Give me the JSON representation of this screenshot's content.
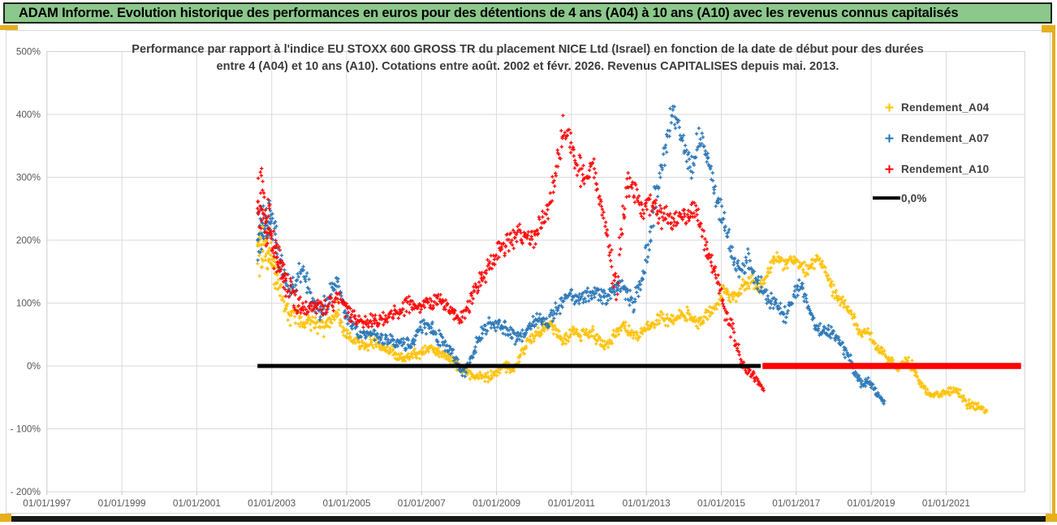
{
  "banner": {
    "title": "ADAM Informe. Evolution historique des performances en euros pour des détentions de 4 ans (A04) à 10 ans (A10) avec les revenus connus capitalisés"
  },
  "chart": {
    "title_line1": "Performance par rapport à l'indice EU STOXX 600 GROSS TR  du placement NICE Ltd (Israel) en fonction de la date de début pour des durées",
    "title_line2": "entre 4 (A04) et 10 ans (A10). Cotations entre août. 2002 et févr. 2026. Revenus CAPITALISES depuis mai. 2013."
  },
  "legend": {
    "items": [
      {
        "label": "Rendement_A04",
        "color": "#FFC000",
        "marker": "plus"
      },
      {
        "label": "Rendement_A07",
        "color": "#2473B5",
        "marker": "plus"
      },
      {
        "label": "Rendement_A10",
        "color": "#FF0000",
        "marker": "plus"
      },
      {
        "label": "0,0%",
        "color": "#000000",
        "marker": "line"
      }
    ]
  },
  "chart_data": {
    "type": "scatter",
    "title": "Performance par rapport à l'indice EU STOXX 600 GROSS TR du placement NICE Ltd (Israel) en fonction de la date de début pour des durées entre 4 (A04) et 10 ans (A10). Cotations entre août. 2002 et févr. 2026. Revenus CAPITALISES depuis mai. 2013.",
    "x_axis": {
      "ticks": [
        "01/01/1997",
        "01/01/1999",
        "01/01/2001",
        "01/01/2003",
        "01/01/2005",
        "01/01/2007",
        "01/01/2009",
        "01/01/2011",
        "01/01/2013",
        "01/01/2015",
        "01/01/2017",
        "01/01/2019",
        "01/01/2021"
      ],
      "range_years": [
        1997.0,
        2023.1
      ],
      "gridlines": true
    },
    "y_axis": {
      "ticks": [
        "500%",
        "400%",
        "300%",
        "200%",
        "100%",
        "0%",
        "- 100%",
        "- 200%"
      ],
      "range_pct": [
        -200,
        500
      ],
      "gridlines": true
    },
    "zero_line": {
      "label": "0,0%",
      "black_segment_years": [
        2002.62,
        2016.05
      ],
      "red_segment_years": [
        2016.1,
        2023.0
      ],
      "black_color": "#000000",
      "red_color": "#FF0000"
    },
    "legend_position": "right",
    "series": [
      {
        "name": "Rendement_A04",
        "color": "#FFC000",
        "marker": "plus",
        "seed": 7,
        "anchors": [
          [
            2002.62,
            185,
            60
          ],
          [
            2002.8,
            195,
            55
          ],
          [
            2002.95,
            175,
            45
          ],
          [
            2003.1,
            150,
            40
          ],
          [
            2003.35,
            100,
            30
          ],
          [
            2003.6,
            78,
            22
          ],
          [
            2003.85,
            72,
            20
          ],
          [
            2004.1,
            70,
            20
          ],
          [
            2004.35,
            58,
            16
          ],
          [
            2004.6,
            75,
            18
          ],
          [
            2004.75,
            88,
            16
          ],
          [
            2004.95,
            55,
            15
          ],
          [
            2005.2,
            38,
            13
          ],
          [
            2005.45,
            32,
            12
          ],
          [
            2005.7,
            38,
            12
          ],
          [
            2005.95,
            28,
            11
          ],
          [
            2006.2,
            22,
            11
          ],
          [
            2006.5,
            12,
            10
          ],
          [
            2006.75,
            18,
            10
          ],
          [
            2007.0,
            22,
            11
          ],
          [
            2007.25,
            30,
            12
          ],
          [
            2007.5,
            18,
            11
          ],
          [
            2007.8,
            8,
            10
          ],
          [
            2008.1,
            -8,
            10
          ],
          [
            2008.4,
            -14,
            10
          ],
          [
            2008.7,
            -20,
            9
          ],
          [
            2008.95,
            -12,
            9
          ],
          [
            2009.2,
            2,
            10
          ],
          [
            2009.45,
            -8,
            10
          ],
          [
            2009.7,
            25,
            12
          ],
          [
            2010.0,
            48,
            13
          ],
          [
            2010.3,
            62,
            13
          ],
          [
            2010.5,
            64,
            12
          ],
          [
            2010.8,
            38,
            12
          ],
          [
            2011.0,
            55,
            13
          ],
          [
            2011.25,
            48,
            12
          ],
          [
            2011.55,
            55,
            12
          ],
          [
            2011.85,
            30,
            12
          ],
          [
            2012.1,
            45,
            12
          ],
          [
            2012.35,
            65,
            13
          ],
          [
            2012.6,
            52,
            12
          ],
          [
            2012.8,
            45,
            12
          ],
          [
            2013.0,
            60,
            12
          ],
          [
            2013.2,
            68,
            13
          ],
          [
            2013.4,
            80,
            13
          ],
          [
            2013.6,
            72,
            12
          ],
          [
            2013.85,
            78,
            12
          ],
          [
            2014.1,
            85,
            13
          ],
          [
            2014.35,
            68,
            13
          ],
          [
            2014.6,
            80,
            13
          ],
          [
            2014.85,
            90,
            13
          ],
          [
            2015.05,
            120,
            15
          ],
          [
            2015.25,
            105,
            14
          ],
          [
            2015.5,
            120,
            14
          ],
          [
            2015.75,
            135,
            15
          ],
          [
            2016.0,
            122,
            14
          ],
          [
            2016.25,
            150,
            15
          ],
          [
            2016.5,
            175,
            15
          ],
          [
            2016.7,
            160,
            14
          ],
          [
            2016.9,
            172,
            14
          ],
          [
            2017.1,
            162,
            14
          ],
          [
            2017.3,
            150,
            14
          ],
          [
            2017.55,
            172,
            14
          ],
          [
            2017.75,
            155,
            14
          ],
          [
            2018.0,
            118,
            14
          ],
          [
            2018.3,
            95,
            12
          ],
          [
            2018.5,
            80,
            12
          ],
          [
            2018.72,
            52,
            11
          ],
          [
            2018.9,
            55,
            11
          ],
          [
            2019.15,
            30,
            10
          ],
          [
            2019.35,
            20,
            10
          ],
          [
            2019.55,
            5,
            9
          ],
          [
            2019.75,
            0,
            9
          ],
          [
            2019.95,
            10,
            9
          ],
          [
            2020.1,
            0,
            9
          ],
          [
            2020.3,
            -25,
            9
          ],
          [
            2020.55,
            -45,
            9
          ],
          [
            2020.8,
            -45,
            8
          ],
          [
            2021.0,
            -42,
            8
          ],
          [
            2021.3,
            -40,
            8
          ],
          [
            2021.55,
            -60,
            8
          ],
          [
            2021.75,
            -62,
            8
          ],
          [
            2021.95,
            -68,
            8
          ],
          [
            2022.1,
            -76,
            6
          ]
        ]
      },
      {
        "name": "Rendement_A07",
        "color": "#2473B5",
        "marker": "plus",
        "seed": 13,
        "anchors": [
          [
            2002.62,
            210,
            45
          ],
          [
            2002.8,
            230,
            40
          ],
          [
            2003.0,
            235,
            35
          ],
          [
            2003.2,
            170,
            35
          ],
          [
            2003.45,
            120,
            25
          ],
          [
            2003.7,
            140,
            22
          ],
          [
            2003.85,
            150,
            20
          ],
          [
            2004.05,
            110,
            20
          ],
          [
            2004.3,
            85,
            18
          ],
          [
            2004.6,
            120,
            20
          ],
          [
            2004.75,
            140,
            18
          ],
          [
            2004.95,
            90,
            18
          ],
          [
            2005.15,
            62,
            14
          ],
          [
            2005.4,
            48,
            12
          ],
          [
            2005.65,
            55,
            12
          ],
          [
            2005.9,
            45,
            12
          ],
          [
            2006.15,
            42,
            12
          ],
          [
            2006.45,
            38,
            12
          ],
          [
            2006.7,
            32,
            12
          ],
          [
            2006.95,
            60,
            14
          ],
          [
            2007.2,
            65,
            14
          ],
          [
            2007.45,
            45,
            14
          ],
          [
            2007.75,
            25,
            12
          ],
          [
            2008.0,
            0,
            12
          ],
          [
            2008.15,
            -12,
            10
          ],
          [
            2008.35,
            15,
            14
          ],
          [
            2008.6,
            50,
            16
          ],
          [
            2008.85,
            70,
            16
          ],
          [
            2009.1,
            68,
            14
          ],
          [
            2009.35,
            52,
            14
          ],
          [
            2009.6,
            42,
            12
          ],
          [
            2009.85,
            60,
            14
          ],
          [
            2010.1,
            75,
            15
          ],
          [
            2010.4,
            72,
            15
          ],
          [
            2010.65,
            95,
            16
          ],
          [
            2010.95,
            115,
            16
          ],
          [
            2011.2,
            108,
            15
          ],
          [
            2011.45,
            112,
            15
          ],
          [
            2011.7,
            118,
            15
          ],
          [
            2011.95,
            108,
            15
          ],
          [
            2012.2,
            125,
            16
          ],
          [
            2012.45,
            120,
            16
          ],
          [
            2012.65,
            100,
            18
          ],
          [
            2012.85,
            135,
            20
          ],
          [
            2013.0,
            175,
            25
          ],
          [
            2013.2,
            250,
            30
          ],
          [
            2013.45,
            330,
            30
          ],
          [
            2013.65,
            400,
            25
          ],
          [
            2013.85,
            385,
            25
          ],
          [
            2014.0,
            350,
            22
          ],
          [
            2014.2,
            310,
            22
          ],
          [
            2014.4,
            360,
            25
          ],
          [
            2014.55,
            345,
            22
          ],
          [
            2014.7,
            320,
            22
          ],
          [
            2014.9,
            260,
            25
          ],
          [
            2015.1,
            225,
            22
          ],
          [
            2015.3,
            170,
            22
          ],
          [
            2015.5,
            150,
            20
          ],
          [
            2015.7,
            175,
            20
          ],
          [
            2015.9,
            140,
            20
          ],
          [
            2016.1,
            120,
            18
          ],
          [
            2016.3,
            105,
            16
          ],
          [
            2016.5,
            95,
            16
          ],
          [
            2016.7,
            80,
            15
          ],
          [
            2016.9,
            105,
            15
          ],
          [
            2017.1,
            130,
            16
          ],
          [
            2017.3,
            100,
            15
          ],
          [
            2017.5,
            62,
            14
          ],
          [
            2017.75,
            55,
            14
          ],
          [
            2018.0,
            50,
            13
          ],
          [
            2018.2,
            35,
            12
          ],
          [
            2018.45,
            8,
            10
          ],
          [
            2018.6,
            -15,
            10
          ],
          [
            2018.78,
            -30,
            10
          ],
          [
            2018.93,
            -20,
            9
          ],
          [
            2019.2,
            -50,
            8
          ],
          [
            2019.36,
            -55,
            7
          ]
        ]
      },
      {
        "name": "Rendement_A10",
        "color": "#FF0000",
        "marker": "plus",
        "seed": 29,
        "anchors": [
          [
            2002.62,
            250,
            70
          ],
          [
            2002.75,
            260,
            60
          ],
          [
            2002.9,
            225,
            45
          ],
          [
            2003.05,
            195,
            45
          ],
          [
            2003.3,
            150,
            40
          ],
          [
            2003.55,
            110,
            25
          ],
          [
            2003.8,
            90,
            20
          ],
          [
            2004.1,
            92,
            18
          ],
          [
            2004.45,
            98,
            18
          ],
          [
            2004.8,
            108,
            15
          ],
          [
            2005.1,
            82,
            15
          ],
          [
            2005.45,
            70,
            13
          ],
          [
            2005.8,
            72,
            13
          ],
          [
            2006.1,
            78,
            14
          ],
          [
            2006.4,
            85,
            15
          ],
          [
            2006.65,
            100,
            15
          ],
          [
            2006.9,
            92,
            14
          ],
          [
            2007.15,
            100,
            15
          ],
          [
            2007.4,
            108,
            15
          ],
          [
            2007.7,
            95,
            14
          ],
          [
            2008.0,
            68,
            13
          ],
          [
            2008.2,
            90,
            15
          ],
          [
            2008.5,
            130,
            18
          ],
          [
            2008.8,
            160,
            20
          ],
          [
            2009.1,
            185,
            20
          ],
          [
            2009.3,
            195,
            20
          ],
          [
            2009.6,
            215,
            20
          ],
          [
            2009.9,
            205,
            20
          ],
          [
            2010.1,
            210,
            22
          ],
          [
            2010.35,
            250,
            25
          ],
          [
            2010.6,
            320,
            28
          ],
          [
            2010.8,
            380,
            28
          ],
          [
            2010.95,
            360,
            25
          ],
          [
            2011.15,
            315,
            25
          ],
          [
            2011.4,
            295,
            25
          ],
          [
            2011.55,
            315,
            25
          ],
          [
            2011.8,
            260,
            25
          ],
          [
            2012.0,
            185,
            30
          ],
          [
            2012.2,
            125,
            28
          ],
          [
            2012.35,
            220,
            35
          ],
          [
            2012.5,
            295,
            25
          ],
          [
            2012.7,
            275,
            25
          ],
          [
            2012.9,
            250,
            22
          ],
          [
            2013.1,
            255,
            22
          ],
          [
            2013.4,
            240,
            22
          ],
          [
            2013.7,
            225,
            22
          ],
          [
            2013.9,
            240,
            20
          ],
          [
            2014.1,
            235,
            20
          ],
          [
            2014.3,
            250,
            20
          ],
          [
            2014.5,
            205,
            22
          ],
          [
            2014.7,
            170,
            20
          ],
          [
            2014.95,
            125,
            22
          ],
          [
            2015.1,
            90,
            20
          ],
          [
            2015.3,
            55,
            18
          ],
          [
            2015.5,
            15,
            15
          ],
          [
            2015.65,
            -5,
            12
          ],
          [
            2015.85,
            -12,
            10
          ],
          [
            2016.0,
            -28,
            9
          ],
          [
            2016.12,
            -38,
            7
          ]
        ]
      }
    ]
  }
}
